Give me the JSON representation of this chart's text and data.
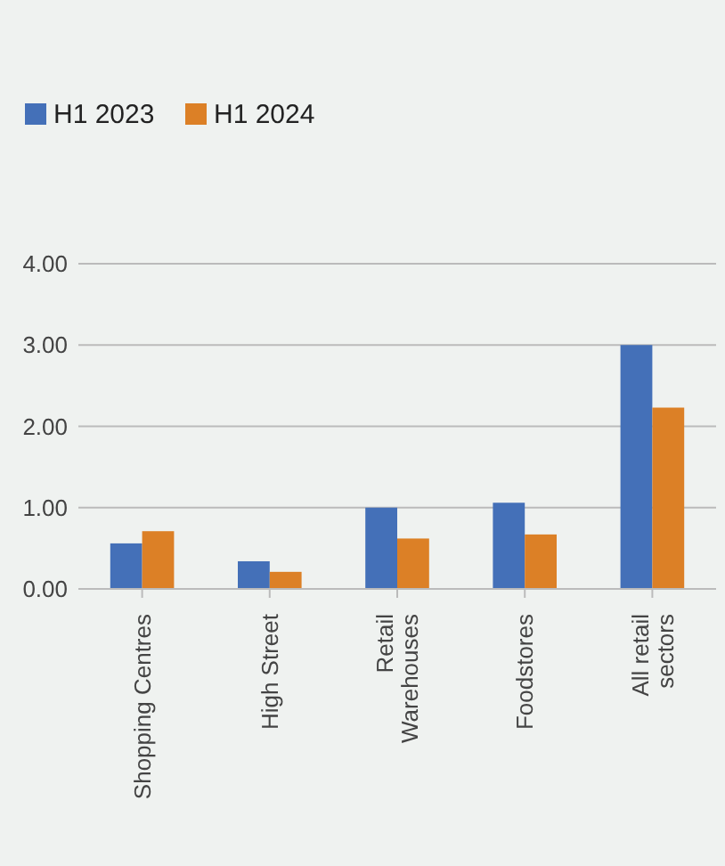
{
  "chart_data": {
    "type": "bar",
    "categories": [
      "Shopping Centres",
      "High Street",
      "Retail\nWarehouses",
      "Foodstores",
      "All retail\nsectors"
    ],
    "series": [
      {
        "name": "H1 2023",
        "color": "#4470b8",
        "values": [
          0.56,
          0.34,
          1.0,
          1.06,
          3.0
        ]
      },
      {
        "name": "H1 2024",
        "color": "#dc8026",
        "values": [
          0.71,
          0.21,
          0.62,
          0.67,
          2.23
        ]
      }
    ],
    "ylim": [
      0,
      4
    ],
    "yticks": [
      {
        "value": 0,
        "label": "0.00"
      },
      {
        "value": 1,
        "label": "1.00"
      },
      {
        "value": 2,
        "label": "2.00"
      },
      {
        "value": 3,
        "label": "3.00"
      },
      {
        "value": 4,
        "label": "4.00"
      }
    ],
    "grid": "y",
    "legend": "top left"
  }
}
